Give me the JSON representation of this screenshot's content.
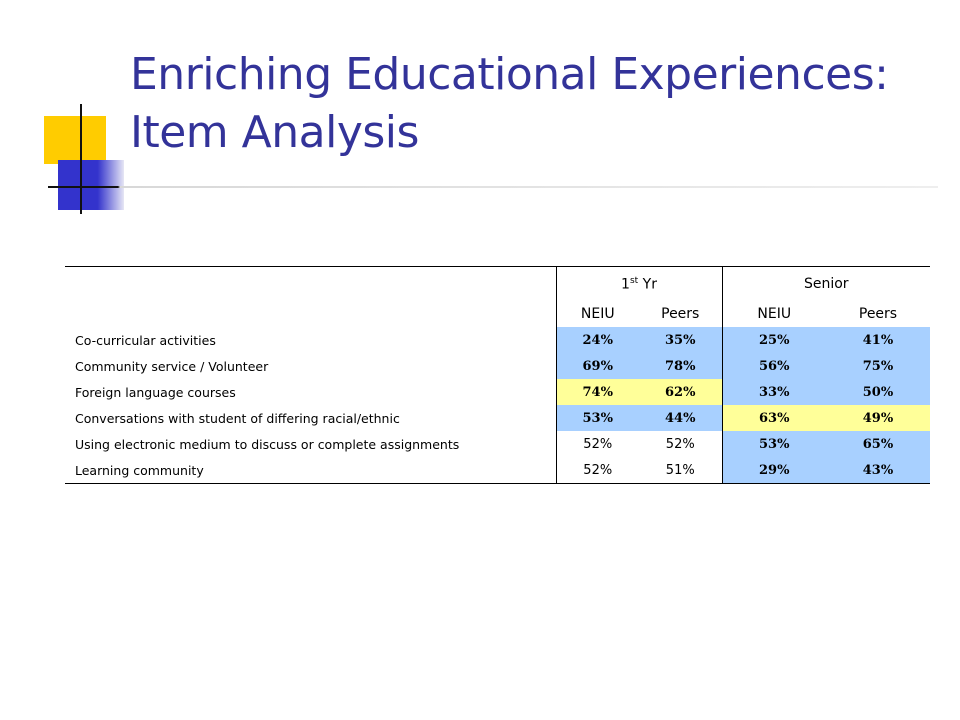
{
  "slide": {
    "title_line1": "Enriching Educational Experiences:",
    "title_line2": "Item Analysis"
  },
  "colors": {
    "title": "#333399",
    "accent_yellow": "#ffcc00",
    "accent_blue": "#3333cc",
    "cell_blue": "#a8d0ff",
    "cell_yellow": "#ffff99"
  },
  "table": {
    "group_headers": {
      "first_year_base": "1",
      "first_year_sup": "st",
      "first_year_rest": " Yr",
      "senior": "Senior"
    },
    "sub_headers": [
      "NEIU",
      "Peers",
      "NEIU",
      "Peers"
    ],
    "rows": [
      {
        "label": "Co-curricular activities",
        "values": [
          "24%",
          "35%",
          "25%",
          "41%"
        ]
      },
      {
        "label": "Community service / Volunteer",
        "values": [
          "69%",
          "78%",
          "56%",
          "75%"
        ]
      },
      {
        "label": "Foreign language courses",
        "values": [
          "74%",
          "62%",
          "33%",
          "50%"
        ]
      },
      {
        "label": "Conversations with student of differing racial/ethnic",
        "values": [
          "53%",
          "44%",
          "63%",
          "49%"
        ]
      },
      {
        "label": "Using electronic medium to discuss or complete assignments",
        "values": [
          "52%",
          "52%",
          "53%",
          "65%"
        ]
      },
      {
        "label": "Learning community",
        "values": [
          "52%",
          "51%",
          "29%",
          "43%"
        ]
      }
    ]
  }
}
